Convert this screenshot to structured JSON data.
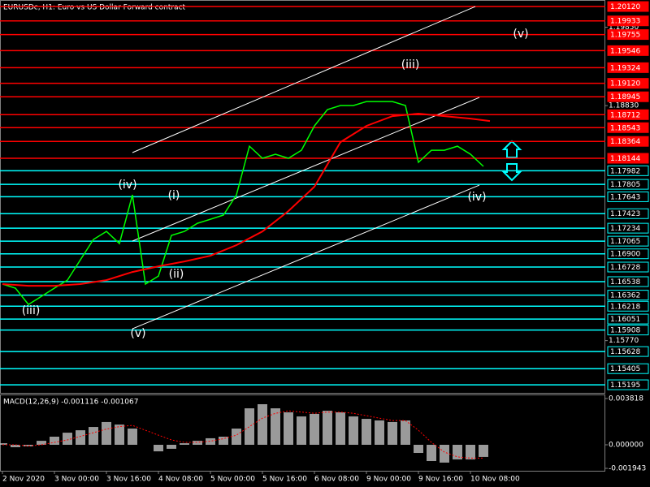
{
  "chart_data": [
    {
      "type": "line",
      "title": "EURUSDc, H1:  Euro vs US Dollar Forward contract",
      "xlim": [
        -0.75,
        185.5
      ],
      "xticks": [
        {
          "value": 0,
          "label": "2 Nov 2020"
        },
        {
          "value": 16,
          "label": "3 Nov 00:00"
        },
        {
          "value": 32,
          "label": "3 Nov 16:00"
        },
        {
          "value": 48,
          "label": "4 Nov 08:00"
        },
        {
          "value": 64,
          "label": "5 Nov 00:00"
        },
        {
          "value": 80,
          "label": "5 Nov 16:00"
        },
        {
          "value": 96,
          "label": "6 Nov 08:00"
        },
        {
          "value": 112,
          "label": "9 Nov 00:00"
        },
        {
          "value": 128,
          "label": "9 Nov 16:00"
        },
        {
          "value": 144,
          "label": "10 Nov 08:00"
        }
      ],
      "ylim": [
        1.1509,
        1.20205
      ],
      "yticks": [
        {
          "value": 1.1985,
          "label": "1.19850"
        },
        {
          "value": 1.1883,
          "label": "1.18830"
        },
        {
          "value": 1.1577,
          "label": "1.15770"
        }
      ],
      "series": [
        {
          "color": "#00ff00",
          "x": [
            0,
            4,
            8,
            12,
            16,
            20,
            24,
            28,
            32,
            36,
            40,
            44,
            48,
            52,
            56,
            60,
            64,
            68,
            72,
            76,
            80,
            84,
            88,
            92,
            96,
            100,
            104,
            108,
            112,
            116,
            120,
            124,
            128,
            132,
            136,
            140,
            144,
            148
          ],
          "values": [
            1.16506,
            1.16453,
            1.16241,
            1.16347,
            1.16453,
            1.16558,
            1.16823,
            1.17087,
            1.17192,
            1.17034,
            1.17668,
            1.16506,
            1.16611,
            1.1714,
            1.17192,
            1.17298,
            1.17351,
            1.17404,
            1.17668,
            1.18302,
            1.18144,
            1.18197,
            1.18144,
            1.18249,
            1.18566,
            1.18778,
            1.18831,
            1.18831,
            1.18883,
            1.18883,
            1.18883,
            1.18831,
            1.18091,
            1.18249,
            1.18249,
            1.18302,
            1.18197,
            1.18038
          ]
        },
        {
          "color": "#ff0000",
          "x": [
            0,
            8,
            16,
            24,
            32,
            40,
            48,
            56,
            64,
            72,
            80,
            88,
            96,
            104,
            112,
            120,
            128,
            136,
            144,
            150
          ],
          "values": [
            1.16506,
            1.16484,
            1.16484,
            1.16506,
            1.16558,
            1.16664,
            1.16738,
            1.16801,
            1.16875,
            1.17013,
            1.17192,
            1.17457,
            1.17774,
            1.18355,
            1.18566,
            1.18693,
            1.18725,
            1.18693,
            1.18661,
            1.18629
          ]
        }
      ],
      "levels": [
        {
          "value": 1.2012,
          "label": "1.20120",
          "color": "#ff0000"
        },
        {
          "value": 1.19933,
          "label": "1.19933",
          "color": "#ff0000"
        },
        {
          "value": 1.19755,
          "label": "1.19755",
          "color": "#ff0000"
        },
        {
          "value": 1.19546,
          "label": "1.19546",
          "color": "#ff0000"
        },
        {
          "value": 1.19324,
          "label": "1.19324",
          "color": "#ff0000"
        },
        {
          "value": 1.1912,
          "label": "1.19120",
          "color": "#ff0000"
        },
        {
          "value": 1.18945,
          "label": "1.18945",
          "color": "#ff0000"
        },
        {
          "value": 1.18712,
          "label": "1.18712",
          "color": "#ff0000"
        },
        {
          "value": 1.18543,
          "label": "1.18543",
          "color": "#ff0000"
        },
        {
          "value": 1.18364,
          "label": "1.18364",
          "color": "#ff0000"
        },
        {
          "value": 1.18144,
          "label": "1.18144",
          "color": "#ff0000"
        },
        {
          "value": 1.17982,
          "label": "1.17982",
          "color": "#00ffff"
        },
        {
          "value": 1.17805,
          "label": "1.17805",
          "color": "#00ffff"
        },
        {
          "value": 1.17643,
          "label": "1.17643",
          "color": "#00ffff"
        },
        {
          "value": 1.17423,
          "label": "1.17423",
          "color": "#00ffff"
        },
        {
          "value": 1.17234,
          "label": "1.17234",
          "color": "#00ffff"
        },
        {
          "value": 1.17065,
          "label": "1.17065",
          "color": "#00ffff"
        },
        {
          "value": 1.169,
          "label": "1.16900",
          "color": "#00ffff"
        },
        {
          "value": 1.16728,
          "label": "1.16728",
          "color": "#00ffff"
        },
        {
          "value": 1.16538,
          "label": "1.16538",
          "color": "#00ffff"
        },
        {
          "value": 1.16362,
          "label": "1.16362",
          "color": "#00ffff"
        },
        {
          "value": 1.16218,
          "label": "1.16218",
          "color": "#00ffff"
        },
        {
          "value": 1.16051,
          "label": "1.16051",
          "color": "#00ffff"
        },
        {
          "value": 1.15908,
          "label": "1.15908",
          "color": "#00ffff"
        },
        {
          "value": 1.15628,
          "label": "1.15628",
          "color": "#00ffff"
        },
        {
          "value": 1.15405,
          "label": "1.15405",
          "color": "#00ffff"
        },
        {
          "value": 1.15195,
          "label": "1.15195",
          "color": "#00ffff"
        }
      ],
      "trend_lines": [
        {
          "x": [
            40,
            145.5
          ],
          "y": [
            1.18218,
            1.2012
          ]
        },
        {
          "x": [
            40,
            146.75
          ],
          "y": [
            1.17066,
            1.18936
          ]
        },
        {
          "x": [
            40,
            146.75
          ],
          "y": [
            1.15924,
            1.17795
          ]
        }
      ],
      "annotations": [
        {
          "text": "(iii)",
          "x": 8.75,
          "y": 1.16157
        },
        {
          "text": "(iv)",
          "x": 38.5,
          "y": 1.17795
        },
        {
          "text": "(i)",
          "x": 52.75,
          "y": 1.17658
        },
        {
          "text": "(ii)",
          "x": 53.5,
          "y": 1.16632
        },
        {
          "text": "(v)",
          "x": 41.75,
          "y": 1.15861
        },
        {
          "text": "(iii)",
          "x": 125.5,
          "y": 1.19359
        },
        {
          "text": "(iv)",
          "x": 146,
          "y": 1.17636
        },
        {
          "text": "(v)",
          "x": 159.5,
          "y": 1.19761
        }
      ]
    },
    {
      "type": "macd",
      "title": "MACD(12,26,9) -0.001116 -0.001067",
      "xlim": [
        -0.75,
        185.5
      ],
      "ylim": [
        -0.002143,
        0.004086
      ],
      "yticks": [
        {
          "value": 0.003818,
          "label": "0.003818"
        },
        {
          "value": 0,
          "label": "0.000000"
        },
        {
          "value": -0.001943,
          "label": "-0.001943"
        }
      ],
      "x": [
        0,
        4,
        8,
        12,
        16,
        20,
        24,
        28,
        32,
        36,
        40,
        44,
        48,
        52,
        56,
        60,
        64,
        68,
        72,
        76,
        80,
        84,
        88,
        92,
        96,
        100,
        104,
        108,
        112,
        116,
        120,
        124,
        128,
        132,
        136,
        140,
        144,
        148
      ],
      "values": [
        0.00013,
        -0.0002,
        -0.00013,
        0.00033,
        0.00067,
        0.001,
        0.0012,
        0.00147,
        0.00188,
        0.00167,
        0.00134,
        0,
        -0.00054,
        -0.00033,
        0.00013,
        0.00033,
        0.00054,
        0.00067,
        0.00134,
        0.00301,
        0.00335,
        0.00301,
        0.00268,
        0.00234,
        0.00255,
        0.00281,
        0.00268,
        0.00234,
        0.00214,
        0.00201,
        0.00188,
        0.00201,
        -0.00067,
        -0.00134,
        -0.00147,
        -0.00121,
        -0.00121,
        -0.001
      ],
      "color": "#c0c0c0",
      "signal": [
        0,
        0,
        -0.0001,
        0,
        0.0002,
        0.0004,
        0.0007,
        0.001,
        0.0013,
        0.0015,
        0.0016,
        0.0012,
        0.0008,
        0.0004,
        0.0002,
        0.0002,
        0.0003,
        0.0005,
        0.0008,
        0.0015,
        0.0022,
        0.0026,
        0.0028,
        0.0027,
        0.0026,
        0.0027,
        0.0027,
        0.0026,
        0.0024,
        0.0022,
        0.002,
        0.002,
        0.0012,
        0.0002,
        -0.0006,
        -0.001,
        -0.0011,
        -0.0011
      ],
      "signal_color": "#ff0000"
    }
  ]
}
